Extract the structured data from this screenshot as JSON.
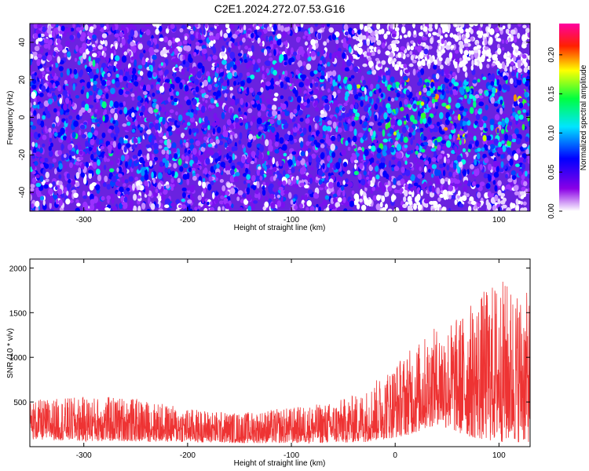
{
  "title": "C2E1.2024.272.07.53.G16",
  "chart_data": [
    {
      "type": "heatmap",
      "xlabel": "Height of straight line (km)",
      "ylabel": "Frequency (Hz)",
      "xlim": [
        -352,
        130
      ],
      "ylim": [
        -50,
        50
      ],
      "xticks": [
        -300,
        -200,
        -100,
        0,
        100
      ],
      "yticks": [
        -40,
        -20,
        0,
        20,
        40
      ],
      "colorbar": {
        "label": "Normalized spectral amplitude",
        "ticks": [
          "0.00",
          "0.05",
          "0.10",
          "0.15",
          "0.20"
        ],
        "range": [
          0.0,
          0.24
        ],
        "colors": [
          "#ffffff",
          "#7a00e0",
          "#0000ff",
          "#00e5ff",
          "#00ff00",
          "#ffff00",
          "#ff0000",
          "#ff00aa"
        ]
      },
      "notes": "Speckled spectrogram: dense purple/blue noise across all heights; stronger blue-cyan-green speckle near 0 Hz for heights > -40 km; faint white regions above +25 Hz and below -40 Hz for heights > -40 km."
    },
    {
      "type": "line",
      "xlabel": "Height of straight line (km)",
      "ylabel": "SNR (10 * v/v)",
      "xlim": [
        -352,
        130
      ],
      "ylim": [
        0,
        2100
      ],
      "xticks": [
        -300,
        -200,
        -100,
        0,
        100
      ],
      "yticks": [
        500,
        1000,
        1500,
        2000
      ],
      "series": [
        {
          "color": "#ee3333",
          "envelope": [
            {
              "x": -350,
              "low": 80,
              "high": 520
            },
            {
              "x": -300,
              "low": 60,
              "high": 560
            },
            {
              "x": -260,
              "low": 60,
              "high": 560
            },
            {
              "x": -200,
              "low": 50,
              "high": 430
            },
            {
              "x": -150,
              "low": 40,
              "high": 380
            },
            {
              "x": -100,
              "low": 40,
              "high": 440
            },
            {
              "x": -60,
              "low": 40,
              "high": 500
            },
            {
              "x": -30,
              "low": 50,
              "high": 620
            },
            {
              "x": 0,
              "low": 100,
              "high": 950
            },
            {
              "x": 20,
              "low": 150,
              "high": 1150
            },
            {
              "x": 40,
              "low": 250,
              "high": 1350
            },
            {
              "x": 60,
              "low": 150,
              "high": 1450
            },
            {
              "x": 80,
              "low": 80,
              "high": 1700
            },
            {
              "x": 100,
              "low": 50,
              "high": 1900
            },
            {
              "x": 130,
              "low": 50,
              "high": 1700
            }
          ]
        }
      ]
    }
  ]
}
